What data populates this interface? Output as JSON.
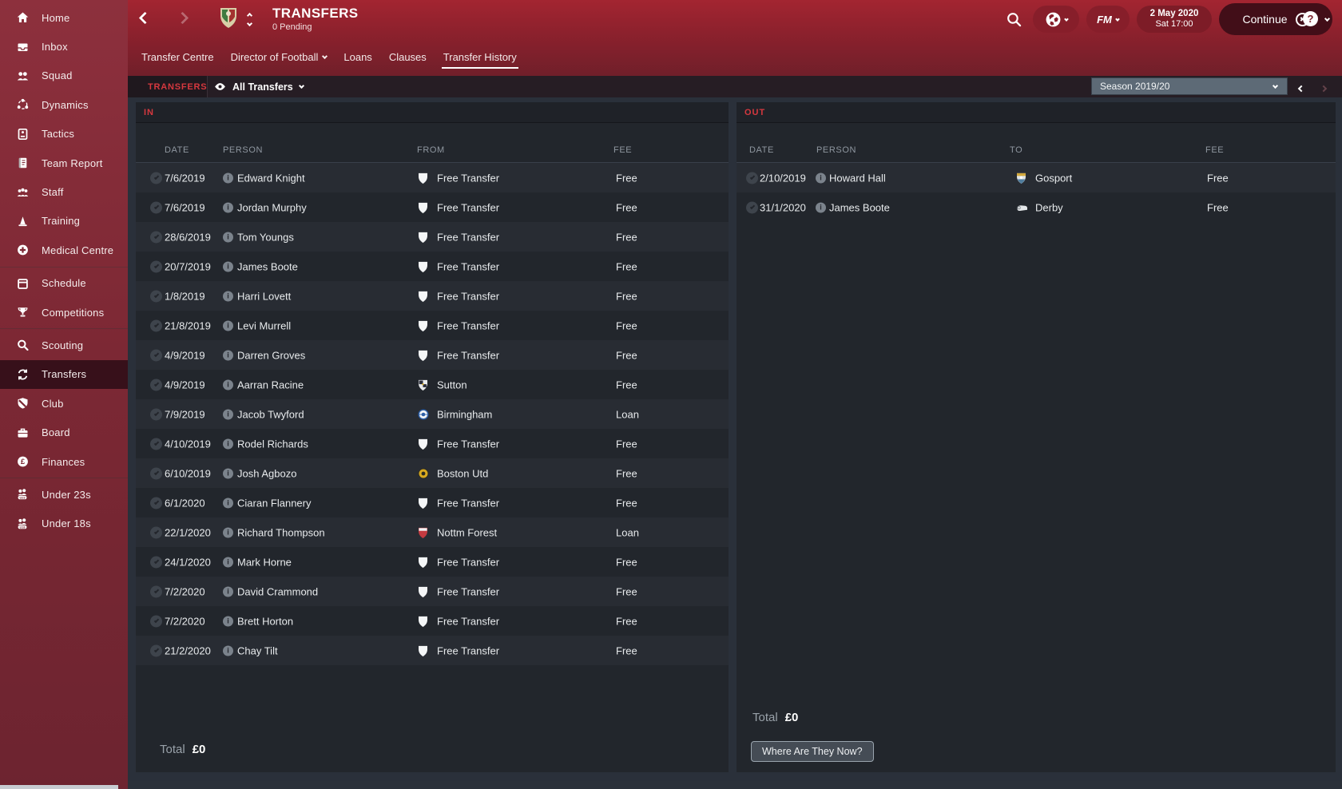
{
  "header": {
    "title": "TRANSFERS",
    "subtitle": "0 Pending",
    "date_line1": "2 May 2020",
    "date_line2": "Sat 17:00",
    "fm_label": "FM",
    "continue_label": "Continue"
  },
  "tabs": [
    {
      "label": "Transfer Centre",
      "active": false,
      "dropdown": false
    },
    {
      "label": "Director of Football",
      "active": false,
      "dropdown": true
    },
    {
      "label": "Loans",
      "active": false,
      "dropdown": false
    },
    {
      "label": "Clauses",
      "active": false,
      "dropdown": false
    },
    {
      "label": "Transfer History",
      "active": true,
      "dropdown": false
    }
  ],
  "sidebar": {
    "items": [
      {
        "label": "Home",
        "icon": "home"
      },
      {
        "label": "Inbox",
        "icon": "inbox"
      },
      {
        "label": "Squad",
        "icon": "squad"
      },
      {
        "label": "Dynamics",
        "icon": "dynamics"
      },
      {
        "label": "Tactics",
        "icon": "tactics"
      },
      {
        "label": "Team Report",
        "icon": "report"
      },
      {
        "label": "Staff",
        "icon": "staff"
      },
      {
        "label": "Training",
        "icon": "training"
      },
      {
        "label": "Medical Centre",
        "icon": "medical"
      },
      {
        "divider": true
      },
      {
        "label": "Schedule",
        "icon": "schedule"
      },
      {
        "label": "Competitions",
        "icon": "competitions"
      },
      {
        "divider": true
      },
      {
        "label": "Scouting",
        "icon": "scouting"
      },
      {
        "label": "Transfers",
        "icon": "transfers",
        "selected": true
      },
      {
        "label": "Club",
        "icon": "club"
      },
      {
        "label": "Board",
        "icon": "board"
      },
      {
        "label": "Finances",
        "icon": "finances"
      },
      {
        "divider": true
      },
      {
        "label": "Under 23s",
        "icon": "u23"
      },
      {
        "label": "Under 18s",
        "icon": "u18"
      }
    ]
  },
  "filter_bar": {
    "section_label": "TRANSFERS",
    "filter_label": "All Transfers",
    "season_label": "Season 2019/20"
  },
  "in_table": {
    "title": "IN",
    "columns": {
      "date": "DATE",
      "person": "PERSON",
      "club": "FROM",
      "fee": "FEE"
    },
    "rows": [
      {
        "date": "7/6/2019",
        "person": "Edward Knight",
        "club": "Free Transfer",
        "crest": "free",
        "fee": "Free"
      },
      {
        "date": "7/6/2019",
        "person": "Jordan Murphy",
        "club": "Free Transfer",
        "crest": "free",
        "fee": "Free"
      },
      {
        "date": "28/6/2019",
        "person": "Tom Youngs",
        "club": "Free Transfer",
        "crest": "free",
        "fee": "Free"
      },
      {
        "date": "20/7/2019",
        "person": "James Boote",
        "club": "Free Transfer",
        "crest": "free",
        "fee": "Free"
      },
      {
        "date": "1/8/2019",
        "person": "Harri Lovett",
        "club": "Free Transfer",
        "crest": "free",
        "fee": "Free"
      },
      {
        "date": "21/8/2019",
        "person": "Levi Murrell",
        "club": "Free Transfer",
        "crest": "free",
        "fee": "Free"
      },
      {
        "date": "4/9/2019",
        "person": "Darren Groves",
        "club": "Free Transfer",
        "crest": "free",
        "fee": "Free"
      },
      {
        "date": "4/9/2019",
        "person": "Aarran Racine",
        "club": "Sutton",
        "crest": "sutton",
        "fee": "Free"
      },
      {
        "date": "7/9/2019",
        "person": "Jacob Twyford",
        "club": "Birmingham",
        "crest": "birmingham",
        "fee": "Loan"
      },
      {
        "date": "4/10/2019",
        "person": "Rodel Richards",
        "club": "Free Transfer",
        "crest": "free",
        "fee": "Free"
      },
      {
        "date": "6/10/2019",
        "person": "Josh Agbozo",
        "club": "Boston Utd",
        "crest": "boston",
        "fee": "Free"
      },
      {
        "date": "6/1/2020",
        "person": "Ciaran Flannery",
        "club": "Free Transfer",
        "crest": "free",
        "fee": "Free"
      },
      {
        "date": "22/1/2020",
        "person": "Richard Thompson",
        "club": "Nottm Forest",
        "crest": "forest",
        "fee": "Loan"
      },
      {
        "date": "24/1/2020",
        "person": "Mark Horne",
        "club": "Free Transfer",
        "crest": "free",
        "fee": "Free"
      },
      {
        "date": "7/2/2020",
        "person": "David Crammond",
        "club": "Free Transfer",
        "crest": "free",
        "fee": "Free"
      },
      {
        "date": "7/2/2020",
        "person": "Brett Horton",
        "club": "Free Transfer",
        "crest": "free",
        "fee": "Free"
      },
      {
        "date": "21/2/2020",
        "person": "Chay Tilt",
        "club": "Free Transfer",
        "crest": "free",
        "fee": "Free"
      }
    ],
    "total_label": "Total",
    "total_value": "£0"
  },
  "out_table": {
    "title": "OUT",
    "columns": {
      "date": "DATE",
      "person": "PERSON",
      "club": "TO",
      "fee": "FEE"
    },
    "rows": [
      {
        "date": "2/10/2019",
        "person": "Howard Hall",
        "club": "Gosport",
        "crest": "gosport",
        "fee": "Free"
      },
      {
        "date": "31/1/2020",
        "person": "James Boote",
        "club": "Derby",
        "crest": "derby",
        "fee": "Free"
      }
    ],
    "total_label": "Total",
    "total_value": "£0",
    "watn_label": "Where Are They Now?"
  },
  "colors": {
    "accent_red": "#d6383f",
    "header_red_top": "#a32531",
    "header_red_bottom": "#701f2a",
    "sidebar_maroon": "#7c2834",
    "sidebar_selected": "#37101a",
    "panel_bg": "#22262c",
    "row_odd": "#282c33",
    "row_even": "#22262c",
    "season_box": "#5d6a76",
    "continue_bg": "#420e18",
    "watn_bg": "#454c55"
  },
  "crest_colors": {
    "free": [
      "#f4f6f7"
    ],
    "sutton": [
      "#e9ebed",
      "#2a2d3a",
      "#d8a91f"
    ],
    "birmingham": [
      "#f2f4f5",
      "#2b5ea7"
    ],
    "boston": [
      "#d8a91f",
      "#2a2a22"
    ],
    "forest": [
      "#c43a40",
      "#f2f4f5"
    ],
    "gosport": [
      "#dfe3e6",
      "#d3a93c",
      "#4f7d9e"
    ],
    "derby": [
      "#e4e7e9",
      "#8a8f94"
    ]
  }
}
